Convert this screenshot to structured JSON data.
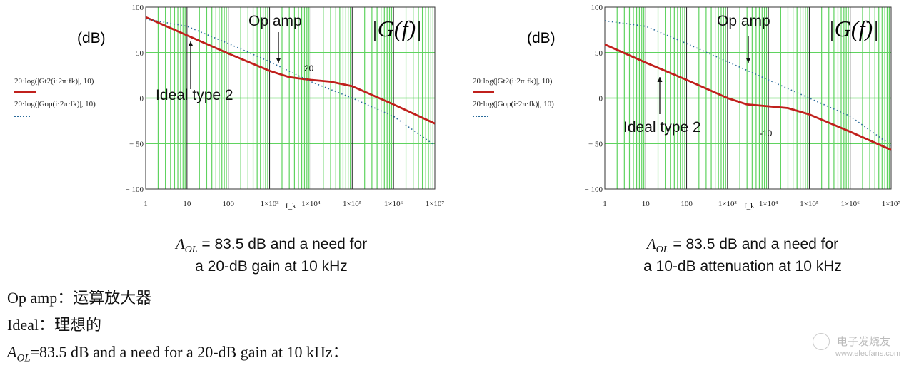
{
  "chart_data": [
    {
      "type": "line",
      "ylabel": "(dB)",
      "xlabel": "f_k",
      "title": "|G(f)|",
      "xscale": "log",
      "xlim": [
        1,
        10000000
      ],
      "ylim": [
        -100,
        100
      ],
      "xticks": [
        "1",
        "10",
        "100",
        "1×10³",
        "1×10⁴",
        "1×10⁵",
        "1×10⁶",
        "1×10⁷"
      ],
      "yticks": [
        "100",
        "50",
        "0",
        "− 50",
        "− 100"
      ],
      "grid": true,
      "legend_position": "left",
      "series": [
        {
          "name": "20·log(|Gt2(i·2π·fk)|, 10)",
          "style": "solid",
          "color": "#c0201c",
          "x": [
            1,
            10,
            100,
            1000,
            3000,
            10000,
            30000,
            100000,
            1000000,
            10000000
          ],
          "y": [
            89,
            69,
            49,
            30,
            23,
            20,
            18,
            13,
            -7,
            -28
          ]
        },
        {
          "name": "20·log(|Gop(i·2π·fk)|, 10)",
          "style": "dotted",
          "color": "#2a6a9a",
          "x": [
            1,
            10,
            100,
            1000,
            10000,
            100000,
            1000000,
            10000000
          ],
          "y": [
            87,
            79,
            60,
            40,
            18,
            0,
            -20,
            -52
          ]
        }
      ],
      "annotations": {
        "op_amp": "Op amp",
        "ideal": "Ideal type 2",
        "point_label": "20"
      },
      "caption": {
        "aol": "A",
        "aol_sub": "OL",
        "line1": " = 83.5 dB and a need for",
        "line2": "a 20-dB gain at 10 kHz"
      }
    },
    {
      "type": "line",
      "ylabel": "(dB)",
      "xlabel": "f_k",
      "title": "|G(f)|",
      "xscale": "log",
      "xlim": [
        1,
        10000000
      ],
      "ylim": [
        -100,
        100
      ],
      "xticks": [
        "1",
        "10",
        "100",
        "1×10³",
        "1×10⁴",
        "1×10⁵",
        "1×10⁶",
        "1×10⁷"
      ],
      "yticks": [
        "100",
        "50",
        "0",
        "− 50",
        "− 100"
      ],
      "grid": true,
      "legend_position": "left",
      "series": [
        {
          "name": "20·log(|Gt2(i·2π·fk)|, 10)",
          "style": "solid",
          "color": "#c0201c",
          "x": [
            1,
            10,
            100,
            1000,
            3000,
            10000,
            30000,
            100000,
            1000000,
            10000000
          ],
          "y": [
            59,
            39,
            20,
            0,
            -7,
            -9,
            -11,
            -18,
            -37,
            -57
          ]
        },
        {
          "name": "20·log(|Gop(i·2π·fk)|, 10)",
          "style": "dotted",
          "color": "#2a6a9a",
          "x": [
            1,
            10,
            100,
            1000,
            10000,
            100000,
            1000000,
            10000000
          ],
          "y": [
            85,
            79,
            60,
            40,
            20,
            0,
            -20,
            -52
          ]
        }
      ],
      "annotations": {
        "op_amp": "Op amp",
        "ideal": "Ideal type 2",
        "point_label": "-10"
      },
      "caption": {
        "aol": "A",
        "aol_sub": "OL",
        "line1": " = 83.5 dB and a need for",
        "line2": "a 10-dB attenuation at 10 kHz"
      }
    }
  ],
  "notes": {
    "line1": "Op amp：运算放大器",
    "line2": "Ideal：理想的",
    "line3_aol": "A",
    "line3_sub": "OL",
    "line3_rest": "=83.5 dB and a need for a 20-dB gain at 10 kHz："
  },
  "watermark": {
    "name": "电子发烧友",
    "url": "www.elecfans.com"
  }
}
